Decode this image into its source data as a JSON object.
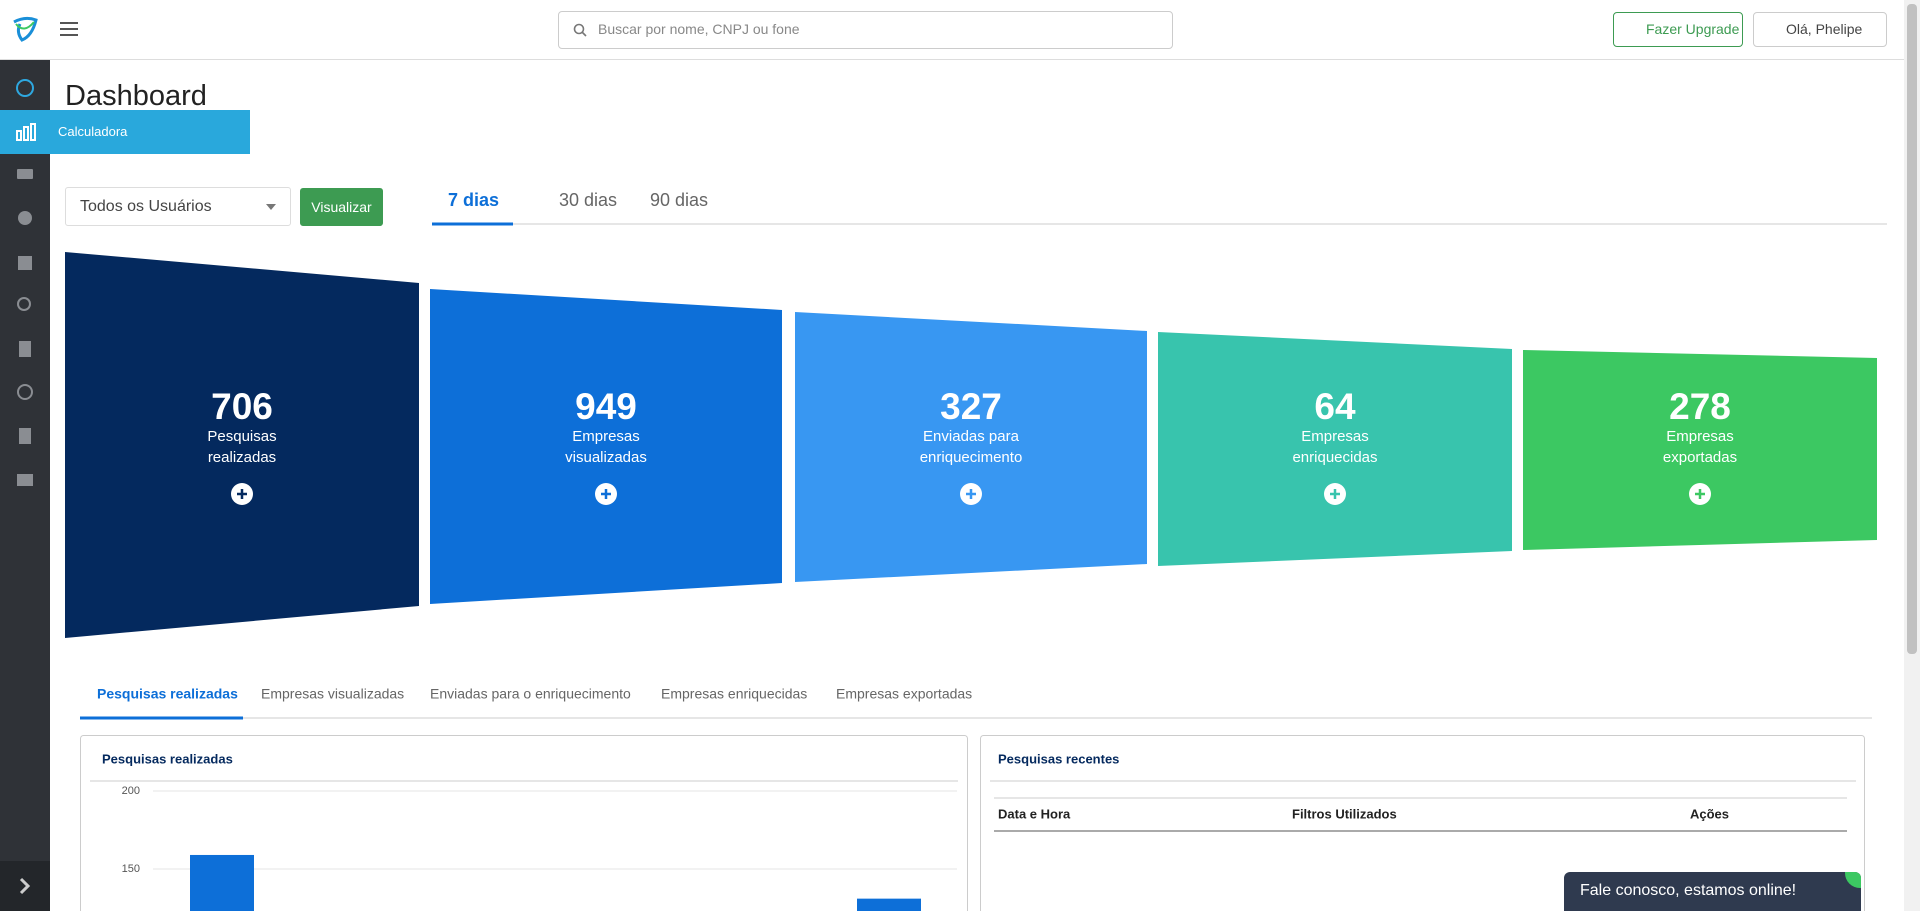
{
  "header": {
    "search_placeholder": "Buscar por nome, CNPJ ou fone",
    "upgrade": "Fazer Upgrade",
    "user": "Olá, Phelipe"
  },
  "sidebar": {
    "tooltip": "Calculadora"
  },
  "title": "Dashboard",
  "filter": {
    "select": "Todos os Usuários",
    "button": "Visualizar"
  },
  "period_tabs": [
    "7 dias",
    "30 dias",
    "90 dias"
  ],
  "funnel": [
    {
      "value": "706",
      "lines": [
        "Pesquisas",
        "realizadas"
      ],
      "color": "#04295e"
    },
    {
      "value": "949",
      "lines": [
        "Empresas",
        "visualizadas"
      ],
      "color": "#0d6fd8"
    },
    {
      "value": "327",
      "lines": [
        "Enviadas para",
        "enriquecimento"
      ],
      "color": "#3897f2"
    },
    {
      "value": "64",
      "lines": [
        "Empresas",
        "enriquecidas"
      ],
      "color": "#38c4ad"
    },
    {
      "value": "278",
      "lines": [
        "Empresas",
        "exportadas"
      ],
      "color": "#3cc862"
    }
  ],
  "detail_tabs": [
    "Pesquisas realizadas",
    "Empresas visualizadas",
    "Enviadas para o enriquecimento",
    "Empresas enriquecidas",
    "Empresas exportadas"
  ],
  "chart_data": {
    "type": "bar",
    "title": "Pesquisas realizadas",
    "yticks": [
      150,
      200
    ],
    "values": [
      159,
      131
    ],
    "color": "#0d6fd8",
    "grid": true
  },
  "recent": {
    "title": "Pesquisas recentes",
    "columns": [
      "Data e Hora",
      "Filtros Utilizados",
      "Ações"
    ]
  },
  "chat": "Fale conosco, estamos online!"
}
